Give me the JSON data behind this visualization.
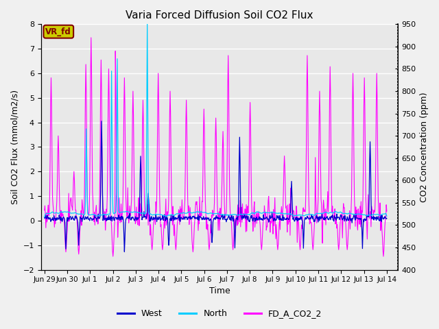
{
  "title": "Varia Forced Diffusion Soil CO2 Flux",
  "xlabel": "Time",
  "ylabel_left": "Soil CO2 Flux (mmol/m2/s)",
  "ylabel_right": "CO2 Concentration (ppm)",
  "xlim_days": [
    -0.15,
    15.5
  ],
  "ylim_left": [
    -2.0,
    8.0
  ],
  "ylim_right": [
    400,
    950
  ],
  "yticks_left": [
    -2.0,
    -1.0,
    0.0,
    1.0,
    2.0,
    3.0,
    4.0,
    5.0,
    6.0,
    7.0,
    8.0
  ],
  "yticks_right": [
    400,
    450,
    500,
    550,
    600,
    650,
    700,
    750,
    800,
    850,
    900,
    950
  ],
  "xtick_labels": [
    "Jun 29",
    "Jun 30",
    "Jul 1",
    "Jul 2",
    "Jul 3",
    "Jul 4",
    "Jul 5",
    "Jul 6",
    "Jul 7",
    "Jul 8",
    "Jul 9",
    "Jul 10",
    "Jul 11",
    "Jul 12",
    "Jul 13",
    "Jul 14"
  ],
  "xtick_positions": [
    0,
    1,
    2,
    3,
    4,
    5,
    6,
    7,
    8,
    9,
    10,
    11,
    12,
    13,
    14,
    15
  ],
  "color_west": "#0000cc",
  "color_north": "#00ccff",
  "color_co2": "#ff00ff",
  "background_color": "#e0e0e0",
  "plot_bg_color": "#e8e8e8",
  "label_box_color": "#cccc00",
  "label_box_text": "VR_fd",
  "label_box_text_color": "#800000",
  "legend_labels": [
    "West",
    "North",
    "FD_A_CO2_2"
  ],
  "seed": 42
}
